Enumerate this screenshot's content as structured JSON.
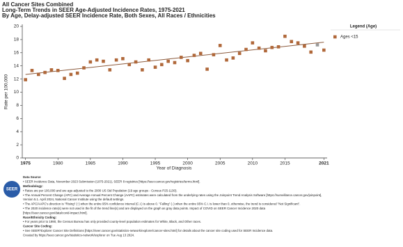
{
  "chart_data": {
    "type": "scatter",
    "title": "All Cancer Sites Combined",
    "subtitle": "Long-Term Trends in SEER Age-Adjusted Incidence Rates, 1975-2021",
    "subtitle2": "By Age, Delay-adjusted SEER Incidence Rate, Both Sexes, All Races / Ethnicities",
    "x_label": "Year of Diagnosis",
    "y_label": "Rate per 100,000",
    "legend_title": "Legend (Age)",
    "legend_position": "right",
    "x": [
      1975,
      1976,
      1977,
      1978,
      1979,
      1980,
      1981,
      1982,
      1983,
      1984,
      1985,
      1986,
      1987,
      1988,
      1989,
      1990,
      1991,
      1992,
      1993,
      1994,
      1995,
      1996,
      1997,
      1998,
      1999,
      2000,
      2001,
      2002,
      2003,
      2004,
      2005,
      2006,
      2007,
      2008,
      2009,
      2010,
      2011,
      2012,
      2013,
      2014,
      2015,
      2016,
      2017,
      2018,
      2019,
      2020,
      2021
    ],
    "series": [
      {
        "name": "Ages <15",
        "color": "#b0683a",
        "values": [
          11.9,
          13.3,
          12.7,
          13.0,
          13.4,
          13.3,
          12.1,
          12.7,
          12.9,
          13.7,
          14.6,
          14.9,
          14.7,
          13.4,
          14.9,
          15.1,
          14.2,
          14.6,
          13.4,
          14.9,
          13.8,
          14.2,
          14.7,
          14.5,
          15.3,
          14.8,
          15.6,
          15.9,
          13.5,
          15.7,
          17.1,
          14.9,
          15.2,
          15.9,
          16.5,
          17.5,
          16.7,
          16.3,
          16.8,
          16.9,
          18.5,
          17.7,
          17.5,
          17.0,
          16.1,
          17.2,
          16.4
        ]
      }
    ],
    "gray_years": [
      2020
    ],
    "gray_color": "#9a9a9a",
    "trend": {
      "x": [
        1975,
        2021
      ],
      "values": [
        12.7,
        17.6
      ],
      "color": "#8b5a3c"
    },
    "xlim": [
      1974.5,
      2021.5
    ],
    "xticks": [
      1975,
      1980,
      1985,
      1990,
      1995,
      2000,
      2005,
      2010,
      2015,
      2021
    ],
    "ylim": [
      0,
      20
    ],
    "yticks": [
      0,
      2,
      4,
      6,
      8,
      10,
      12,
      14,
      16,
      18,
      20
    ],
    "logo_text": "SEER",
    "notes": [
      {
        "text": "Data Source",
        "bold": true
      },
      {
        "text": "• SEER Incidence Data, November 2023 Submission (1975-2021), SEER 8 registries [https://seer.cancer.gov/registries/terms.html].",
        "bold": false
      },
      {
        "text": "Methodology:",
        "bold": true
      },
      {
        "text": "• Rates are per 100,000 and are age-adjusted to the 2000 US Std Population (19 age groups - Census P25-1130).",
        "bold": false
      },
      {
        "text": "• The Annual Percent Change (APC) and Average Annual Percent Change (AAPC) estimates were calculated from the underlying rates using the Joinpoint Trend Analysis Software [https://surveillance.cancer.gov/joinpoint],",
        "bold": false
      },
      {
        "text": "  Version 5.1. April 2024, National Cancer Institute using the default settings.",
        "bold": false
      },
      {
        "text": "• The APC/AAPC's direction is \"Rising\" (↑) when the entire 95% confidence interval (C.I.) is above 0. \"Falling\" (↓) when the entire 95% C.I. is lower than 0, otherwise, the trend is considered \"Not Significant\".",
        "bold": false
      },
      {
        "text": "• The 2020 incidence rate(s) were not used in the fit of the trend line(s) and are displayed on the graph as gray data points. Impact of COVID on SEER Cancer Incidence 2020 data",
        "bold": false
      },
      {
        "text": "  [https://seer.cancer.gov/data/covid-impact.html].",
        "bold": false
      },
      {
        "text": "Race/Ethnicity Coding:",
        "bold": true
      },
      {
        "text": "• For years prior to 1990, the Census Bureau has only provided county-level population estimates for White, Black, and Other races.",
        "bold": false
      },
      {
        "text": "Cancer Site Coding:",
        "bold": true
      },
      {
        "text": "• See SEER*Explorer Cancer Site Definitions [https://seer.cancer.gov/statistics-network/explorer/cancer-sites.html] for details about the cancer site coding used for SEER Incidence data.",
        "bold": false
      },
      {
        "text": "Created by https://seer.cancer.gov/statistics-network/explorer on Tue Aug 13 2024.",
        "bold": false
      }
    ]
  }
}
